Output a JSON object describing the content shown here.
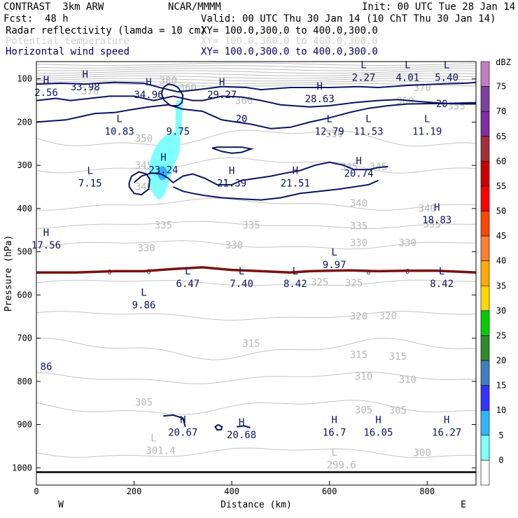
{
  "header": {
    "title": "CONTRAST  3km ARW",
    "source": "NCAR/MMMM",
    "init": "Init: 00 UTC Tue 28 Jan 14",
    "fcst_label": "Fcst:",
    "fcst_value": "48 h",
    "valid": "Valid: 00 UTC Thu 30 Jan 14 (10 ChT Thu 30 Jan 14)",
    "fields": [
      {
        "name": "Radar reflectivity (lamda = 10 cm)",
        "xy": "XY= 100.0,300.0 to 400.0,300.0",
        "color": "#000000"
      },
      {
        "name": "Potential temperature",
        "xy": "XY= 100.0,300.0 to 400.0,300.0",
        "color": "#c8c8c8"
      },
      {
        "name": "Horizontal wind speed",
        "xy": "XY= 100.0,300.0 to 400.0,300.0",
        "color": "#00006b"
      }
    ]
  },
  "chart_data": {
    "type": "contour-cross-section",
    "xlabel": "Distance (km)",
    "ylabel": "Pressure (hPa)",
    "xlim": [
      0,
      900
    ],
    "ylim": [
      1040,
      60
    ],
    "xticks": [
      0,
      200,
      400,
      600,
      800
    ],
    "yticks": [
      100,
      200,
      300,
      400,
      500,
      600,
      700,
      800,
      900,
      1000
    ],
    "left_end": "W",
    "right_end": "E",
    "colorbar": {
      "unit": "dBZ",
      "levels": [
        0,
        5,
        10,
        15,
        20,
        25,
        30,
        35,
        40,
        45,
        50,
        55,
        60,
        65,
        70,
        75
      ],
      "colors": [
        "#ffffff",
        "#7fffff",
        "#33b2ff",
        "#3333ff",
        "#3d7fbd",
        "#2e8b2e",
        "#00cc00",
        "#ffd700",
        "#ffaa00",
        "#ff7f33",
        "#ff4500",
        "#ff0000",
        "#cc0000",
        "#a0303a",
        "#7f2f9f",
        "#7f3f9f",
        "#bf7fbf"
      ]
    },
    "theta_labels": [
      {
        "x": 270,
        "p": 104,
        "text": "380"
      },
      {
        "x": 110,
        "p": 128,
        "text": "370"
      },
      {
        "x": 310,
        "p": 120,
        "text": "360"
      },
      {
        "x": 790,
        "p": 120,
        "text": "370"
      },
      {
        "x": 755,
        "p": 151,
        "text": "360"
      },
      {
        "x": 860,
        "p": 163,
        "text": "355"
      },
      {
        "x": 425,
        "p": 150,
        "text": "360"
      },
      {
        "x": 220,
        "p": 237,
        "text": "350"
      },
      {
        "x": 610,
        "p": 227,
        "text": "350"
      },
      {
        "x": 220,
        "p": 300,
        "text": "345"
      },
      {
        "x": 640,
        "p": 303,
        "text": "345"
      },
      {
        "x": 700,
        "p": 303,
        "text": "345"
      },
      {
        "x": 220,
        "p": 349,
        "text": "340"
      },
      {
        "x": 660,
        "p": 387,
        "text": "340"
      },
      {
        "x": 800,
        "p": 399,
        "text": "340"
      },
      {
        "x": 260,
        "p": 438,
        "text": "335"
      },
      {
        "x": 440,
        "p": 438,
        "text": "335"
      },
      {
        "x": 660,
        "p": 440,
        "text": "335"
      },
      {
        "x": 810,
        "p": 436,
        "text": "335"
      },
      {
        "x": 225,
        "p": 491,
        "text": "330"
      },
      {
        "x": 405,
        "p": 484,
        "text": "330"
      },
      {
        "x": 660,
        "p": 479,
        "text": "330"
      },
      {
        "x": 760,
        "p": 479,
        "text": "330"
      },
      {
        "x": 580,
        "p": 570,
        "text": "325"
      },
      {
        "x": 650,
        "p": 572,
        "text": "325"
      },
      {
        "x": 660,
        "p": 649,
        "text": "320"
      },
      {
        "x": 720,
        "p": 648,
        "text": "320"
      },
      {
        "x": 440,
        "p": 712,
        "text": "315"
      },
      {
        "x": 660,
        "p": 738,
        "text": "315"
      },
      {
        "x": 740,
        "p": 742,
        "text": "315"
      },
      {
        "x": 670,
        "p": 788,
        "text": "310"
      },
      {
        "x": 760,
        "p": 795,
        "text": "310"
      },
      {
        "x": 220,
        "p": 848,
        "text": "305"
      },
      {
        "x": 670,
        "p": 866,
        "text": "305"
      },
      {
        "x": 740,
        "p": 867,
        "text": "305"
      },
      {
        "x": 790,
        "p": 965,
        "text": "300"
      }
    ],
    "theta_minima": [
      {
        "x": 240,
        "p": 952,
        "marker": "L",
        "value": "301.4"
      },
      {
        "x": 610,
        "p": 985,
        "marker": "L",
        "value": "299.6"
      }
    ],
    "wind_extrema": [
      {
        "x": 0,
        "p": 123,
        "marker": "H",
        "value": "2.56"
      },
      {
        "x": 100,
        "p": 110,
        "marker": "H",
        "value": "33.98"
      },
      {
        "x": 230,
        "p": 128,
        "marker": "H",
        "value": "34.96"
      },
      {
        "x": 380,
        "p": 128,
        "marker": "H",
        "value": "29.27"
      },
      {
        "x": 580,
        "p": 138,
        "marker": "H",
        "value": "28.63"
      },
      {
        "x": 670,
        "p": 88,
        "marker": "L",
        "value": "2.27"
      },
      {
        "x": 760,
        "p": 88,
        "marker": "L",
        "value": "4.01"
      },
      {
        "x": 840,
        "p": 88,
        "marker": "L",
        "value": "5.40"
      },
      {
        "x": 170,
        "p": 213,
        "marker": "L",
        "value": "10.83"
      },
      {
        "x": 290,
        "p": 213,
        "marker": "",
        "value": "9.75"
      },
      {
        "x": 600,
        "p": 213,
        "marker": "L",
        "value": "12.79"
      },
      {
        "x": 680,
        "p": 213,
        "marker": "L",
        "value": "11.53"
      },
      {
        "x": 800,
        "p": 213,
        "marker": "L",
        "value": "11.19"
      },
      {
        "x": 110,
        "p": 333,
        "marker": "L",
        "value": "7.15"
      },
      {
        "x": 260,
        "p": 302,
        "marker": "H",
        "value": "23.24"
      },
      {
        "x": 400,
        "p": 333,
        "marker": "H",
        "value": "21.39"
      },
      {
        "x": 530,
        "p": 333,
        "marker": "H",
        "value": "21.51"
      },
      {
        "x": 660,
        "p": 310,
        "marker": "H",
        "value": "20.74"
      },
      {
        "x": 820,
        "p": 418,
        "marker": "H",
        "value": "18.83"
      },
      {
        "x": 20,
        "p": 476,
        "marker": "H",
        "value": "17.56"
      },
      {
        "x": 610,
        "p": 522,
        "marker": "L",
        "value": "9.97"
      },
      {
        "x": 310,
        "p": 565,
        "marker": "L",
        "value": "6.47"
      },
      {
        "x": 420,
        "p": 565,
        "marker": "L",
        "value": "7.40"
      },
      {
        "x": 530,
        "p": 565,
        "marker": "L",
        "value": "8.42"
      },
      {
        "x": 830,
        "p": 565,
        "marker": "L",
        "value": "8.42"
      },
      {
        "x": 220,
        "p": 615,
        "marker": "L",
        "value": "9.86"
      },
      {
        "x": 0,
        "p": 757,
        "marker": "",
        "value": "86"
      },
      {
        "x": 300,
        "p": 910,
        "marker": "H",
        "value": "20.67"
      },
      {
        "x": 420,
        "p": 915,
        "marker": "H",
        "value": "20.68"
      },
      {
        "x": 610,
        "p": 910,
        "marker": "H",
        "value": "16.7"
      },
      {
        "x": 700,
        "p": 910,
        "marker": "H",
        "value": "16.05"
      },
      {
        "x": 840,
        "p": 910,
        "marker": "H",
        "value": "16.27"
      }
    ],
    "wind_contours": [
      {
        "label": "20",
        "points": [
          [
            0,
            200
          ],
          [
            60,
            195
          ],
          [
            120,
            180
          ],
          [
            160,
            178
          ],
          [
            190,
            172
          ],
          [
            230,
            165
          ],
          [
            270,
            160
          ],
          [
            300,
            170
          ],
          [
            340,
            175
          ],
          [
            360,
            185
          ],
          [
            380,
            195
          ],
          [
            410,
            200
          ],
          [
            440,
            205
          ],
          [
            480,
            215
          ],
          [
            520,
            212
          ],
          [
            560,
            200
          ],
          [
            600,
            190
          ],
          [
            640,
            178
          ],
          [
            680,
            168
          ],
          [
            720,
            162
          ],
          [
            760,
            158
          ],
          [
            820,
            157
          ],
          [
            880,
            158
          ],
          [
            900,
            158
          ]
        ]
      },
      {
        "label": "20",
        "points": [
          [
            0,
            150
          ],
          [
            40,
            145
          ],
          [
            70,
            150
          ],
          [
            110,
            145
          ],
          [
            150,
            140
          ],
          [
            200,
            140
          ],
          [
            240,
            150
          ],
          [
            280,
            140
          ],
          [
            320,
            150
          ],
          [
            340,
            150
          ],
          [
            380,
            140
          ],
          [
            420,
            142
          ],
          [
            460,
            150
          ],
          [
            500,
            160
          ],
          [
            560,
            165
          ],
          [
            600,
            162
          ],
          [
            650,
            155
          ],
          [
            700,
            150
          ],
          [
            740,
            148
          ],
          [
            790,
            153
          ],
          [
            840,
            157
          ],
          [
            900,
            155
          ]
        ]
      },
      {
        "label": "",
        "points": [
          [
            0,
            112
          ],
          [
            50,
            110
          ],
          [
            100,
            112
          ],
          [
            160,
            108
          ],
          [
            220,
            110
          ],
          [
            260,
            122
          ],
          [
            290,
            130
          ],
          [
            330,
            125
          ],
          [
            380,
            118
          ],
          [
            430,
            120
          ],
          [
            460,
            125
          ],
          [
            520,
            120
          ],
          [
            600,
            120
          ],
          [
            660,
            118
          ],
          [
            700,
            120
          ],
          [
            760,
            115
          ],
          [
            820,
            112
          ],
          [
            880,
            110
          ],
          [
            900,
            108
          ]
        ]
      },
      {
        "label": "",
        "points": [
          [
            200,
            340
          ],
          [
            215,
            325
          ],
          [
            235,
            318
          ],
          [
            255,
            320
          ],
          [
            270,
            330
          ],
          [
            280,
            340
          ],
          [
            300,
            325
          ],
          [
            320,
            320
          ],
          [
            345,
            330
          ],
          [
            370,
            345
          ],
          [
            400,
            345
          ],
          [
            420,
            335
          ],
          [
            450,
            330
          ],
          [
            480,
            325
          ],
          [
            510,
            318
          ],
          [
            540,
            312
          ],
          [
            570,
            300
          ],
          [
            600,
            293
          ],
          [
            630,
            300
          ],
          [
            650,
            310
          ],
          [
            680,
            310
          ],
          [
            700,
            305
          ],
          [
            720,
            303
          ]
        ]
      },
      {
        "label": "",
        "points": [
          [
            360,
            260
          ],
          [
            380,
            268
          ],
          [
            400,
            272
          ],
          [
            420,
            270
          ],
          [
            440,
            262
          ],
          [
            420,
            258
          ],
          [
            395,
            258
          ],
          [
            370,
            258
          ],
          [
            360,
            260
          ]
        ]
      },
      {
        "label": "",
        "points": [
          [
            280,
            350
          ],
          [
            300,
            360
          ],
          [
            320,
            365
          ],
          [
            345,
            370
          ],
          [
            380,
            375
          ],
          [
            420,
            378
          ],
          [
            460,
            380
          ],
          [
            500,
            375
          ],
          [
            540,
            365
          ],
          [
            580,
            360
          ],
          [
            620,
            355
          ],
          [
            650,
            350
          ],
          [
            680,
            345
          ],
          [
            700,
            335
          ]
        ]
      },
      {
        "label": "",
        "points": [
          [
            190,
            350
          ],
          [
            200,
            365
          ],
          [
            215,
            368
          ],
          [
            230,
            355
          ],
          [
            232,
            332
          ],
          [
            225,
            320
          ],
          [
            210,
            315
          ],
          [
            195,
            325
          ],
          [
            190,
            340
          ],
          [
            190,
            350
          ]
        ]
      },
      {
        "label": "",
        "points": [
          [
            260,
            120
          ],
          [
            270,
            112
          ],
          [
            280,
            114
          ],
          [
            290,
            120
          ],
          [
            300,
            138
          ],
          [
            298,
            155
          ],
          [
            290,
            162
          ],
          [
            275,
            162
          ],
          [
            262,
            150
          ],
          [
            256,
            135
          ],
          [
            260,
            120
          ]
        ]
      },
      {
        "label": "",
        "points": [
          [
            260,
            880
          ],
          [
            280,
            878
          ],
          [
            300,
            885
          ],
          [
            305,
            905
          ]
        ]
      },
      {
        "label": "",
        "points": [
          [
            372,
            900
          ],
          [
            380,
            905
          ],
          [
            378,
            912
          ],
          [
            370,
            912
          ],
          [
            366,
            905
          ],
          [
            372,
            900
          ]
        ]
      },
      {
        "label": "",
        "points": [
          [
            410,
            905
          ],
          [
            425,
            903
          ],
          [
            438,
            907
          ]
        ]
      }
    ],
    "zero_contour": {
      "label": "0",
      "points": [
        [
          0,
          548
        ],
        [
          80,
          548
        ],
        [
          160,
          545
        ],
        [
          220,
          545
        ],
        [
          280,
          540
        ],
        [
          340,
          536
        ],
        [
          400,
          542
        ],
        [
          460,
          545
        ],
        [
          520,
          548
        ],
        [
          560,
          545
        ],
        [
          600,
          544
        ],
        [
          640,
          543
        ],
        [
          700,
          545
        ],
        [
          760,
          544
        ],
        [
          820,
          544
        ],
        [
          900,
          548
        ]
      ]
    },
    "ground_line_p": 1010
  }
}
